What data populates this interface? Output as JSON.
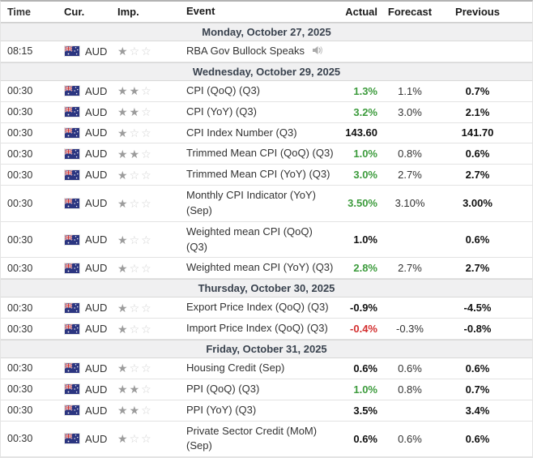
{
  "headers": {
    "time": "Time",
    "cur": "Cur.",
    "imp": "Imp.",
    "event": "Event",
    "actual": "Actual",
    "forecast": "Forecast",
    "previous": "Previous"
  },
  "icons": {
    "flag": "australia-flag-icon",
    "importance_filled": "star-filled-icon",
    "importance_empty": "star-empty-icon",
    "audio": "speaker-icon"
  },
  "colors": {
    "positive": "#3c9b3c",
    "negative": "#d32f2f",
    "neutral": "#111111",
    "date_header_bg": "#f0f0f1",
    "date_header_text": "#39424e"
  },
  "importance_max": 3,
  "sections": [
    {
      "date": "Monday, October 27, 2025",
      "rows": [
        {
          "time": "08:15",
          "currency": "AUD",
          "importance": 1,
          "event": "RBA Gov Bullock Speaks",
          "audio": true,
          "actual": "",
          "actual_tone": "neutral",
          "forecast": "",
          "previous": ""
        }
      ]
    },
    {
      "date": "Wednesday, October 29, 2025",
      "rows": [
        {
          "time": "00:30",
          "currency": "AUD",
          "importance": 2,
          "event": "CPI (QoQ) (Q3)",
          "audio": false,
          "actual": "1.3%",
          "actual_tone": "positive",
          "forecast": "1.1%",
          "previous": "0.7%"
        },
        {
          "time": "00:30",
          "currency": "AUD",
          "importance": 2,
          "event": "CPI (YoY) (Q3)",
          "audio": false,
          "actual": "3.2%",
          "actual_tone": "positive",
          "forecast": "3.0%",
          "previous": "2.1%"
        },
        {
          "time": "00:30",
          "currency": "AUD",
          "importance": 1,
          "event": "CPI Index Number (Q3)",
          "audio": false,
          "actual": "143.60",
          "actual_tone": "neutral",
          "forecast": "",
          "previous": "141.70"
        },
        {
          "time": "00:30",
          "currency": "AUD",
          "importance": 2,
          "event": "Trimmed Mean CPI (QoQ) (Q3)",
          "audio": false,
          "actual": "1.0%",
          "actual_tone": "positive",
          "forecast": "0.8%",
          "previous": "0.6%"
        },
        {
          "time": "00:30",
          "currency": "AUD",
          "importance": 1,
          "event": "Trimmed Mean CPI (YoY) (Q3)",
          "audio": false,
          "actual": "3.0%",
          "actual_tone": "positive",
          "forecast": "2.7%",
          "previous": "2.7%"
        },
        {
          "time": "00:30",
          "currency": "AUD",
          "importance": 1,
          "event": "Monthly CPI Indicator (YoY) (Sep)",
          "audio": false,
          "actual": "3.50%",
          "actual_tone": "positive",
          "forecast": "3.10%",
          "previous": "3.00%"
        },
        {
          "time": "00:30",
          "currency": "AUD",
          "importance": 1,
          "event": "Weighted mean CPI (QoQ) (Q3)",
          "audio": false,
          "actual": "1.0%",
          "actual_tone": "neutral",
          "forecast": "",
          "previous": "0.6%"
        },
        {
          "time": "00:30",
          "currency": "AUD",
          "importance": 1,
          "event": "Weighted mean CPI (YoY) (Q3)",
          "audio": false,
          "actual": "2.8%",
          "actual_tone": "positive",
          "forecast": "2.7%",
          "previous": "2.7%"
        }
      ]
    },
    {
      "date": "Thursday, October 30, 2025",
      "rows": [
        {
          "time": "00:30",
          "currency": "AUD",
          "importance": 1,
          "event": "Export Price Index (QoQ) (Q3)",
          "audio": false,
          "actual": "-0.9%",
          "actual_tone": "neutral",
          "forecast": "",
          "previous": "-4.5%"
        },
        {
          "time": "00:30",
          "currency": "AUD",
          "importance": 1,
          "event": "Import Price Index (QoQ) (Q3)",
          "audio": false,
          "actual": "-0.4%",
          "actual_tone": "negative",
          "forecast": "-0.3%",
          "previous": "-0.8%"
        }
      ]
    },
    {
      "date": "Friday, October 31, 2025",
      "rows": [
        {
          "time": "00:30",
          "currency": "AUD",
          "importance": 1,
          "event": "Housing Credit (Sep)",
          "audio": false,
          "actual": "0.6%",
          "actual_tone": "neutral",
          "forecast": "0.6%",
          "previous": "0.6%"
        },
        {
          "time": "00:30",
          "currency": "AUD",
          "importance": 2,
          "event": "PPI (QoQ) (Q3)",
          "audio": false,
          "actual": "1.0%",
          "actual_tone": "positive",
          "forecast": "0.8%",
          "previous": "0.7%"
        },
        {
          "time": "00:30",
          "currency": "AUD",
          "importance": 2,
          "event": "PPI (YoY) (Q3)",
          "audio": false,
          "actual": "3.5%",
          "actual_tone": "neutral",
          "forecast": "",
          "previous": "3.4%"
        },
        {
          "time": "00:30",
          "currency": "AUD",
          "importance": 1,
          "event": "Private Sector Credit (MoM) (Sep)",
          "audio": false,
          "actual": "0.6%",
          "actual_tone": "neutral",
          "forecast": "0.6%",
          "previous": "0.6%"
        }
      ]
    }
  ]
}
